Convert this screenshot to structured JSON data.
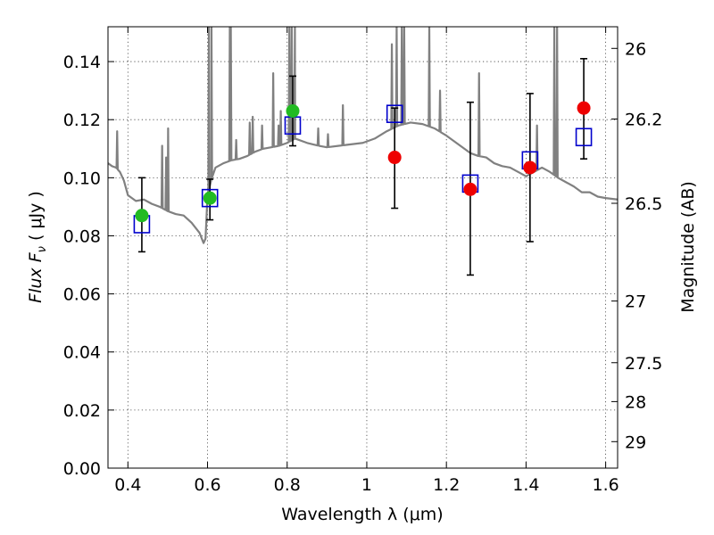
{
  "chart_data": {
    "type": "scatter",
    "xlabel": "Wavelength  λ (μm)",
    "ylabel": "Flux  F",
    "ylabel_sub": "ν",
    "ylabel_unit": "  ( μJy )",
    "y2label": "Magnitude (AB)",
    "xlim": [
      0.35,
      1.63
    ],
    "ylim": [
      0.0,
      0.152
    ],
    "grid": true,
    "x_ticks": [
      0.4,
      0.6,
      0.8,
      1.0,
      1.2,
      1.4,
      1.6
    ],
    "x_tick_labels": [
      "0.4",
      "0.6",
      "0.8",
      "1",
      "1.2",
      "1.4",
      "1.6"
    ],
    "y_ticks": [
      0.0,
      0.02,
      0.04,
      0.06,
      0.08,
      0.1,
      0.12,
      0.14
    ],
    "y_tick_labels": [
      "0.00",
      "0.02",
      "0.04",
      "0.06",
      "0.08",
      "0.10",
      "0.12",
      "0.14"
    ],
    "magnitude_ticks": [
      {
        "label": "26",
        "mag": 26.0
      },
      {
        "label": "26.2",
        "mag": 26.2
      },
      {
        "label": "26.5",
        "mag": 26.5
      },
      {
        "label": "27",
        "mag": 27.0
      },
      {
        "label": "27.5",
        "mag": 27.5
      },
      {
        "label": "28",
        "mag": 28.0
      },
      {
        "label": "29",
        "mag": 29.0
      }
    ],
    "colors": {
      "spectrum": "#808080",
      "model": "#0000cc",
      "observed_green": "#22bb22",
      "observed_red": "#ee0000",
      "errorbar": "#000000"
    },
    "model_photometry": {
      "x": [
        0.435,
        0.606,
        0.814,
        1.07,
        1.26,
        1.41,
        1.545
      ],
      "y": [
        0.084,
        0.093,
        0.118,
        0.122,
        0.098,
        0.106,
        0.114
      ]
    },
    "observed": [
      {
        "x": 0.435,
        "y": 0.087,
        "err_low": 0.0745,
        "err_high": 0.1,
        "color": "green"
      },
      {
        "x": 0.606,
        "y": 0.093,
        "err_low": 0.0855,
        "err_high": 0.0995,
        "color": "green"
      },
      {
        "x": 0.814,
        "y": 0.123,
        "err_low": 0.111,
        "err_high": 0.135,
        "color": "green"
      },
      {
        "x": 1.07,
        "y": 0.107,
        "err_low": 0.0895,
        "err_high": 0.124,
        "color": "red"
      },
      {
        "x": 1.26,
        "y": 0.096,
        "err_low": 0.0665,
        "err_high": 0.126,
        "color": "red"
      },
      {
        "x": 1.41,
        "y": 0.1035,
        "err_low": 0.078,
        "err_high": 0.129,
        "color": "red"
      },
      {
        "x": 1.545,
        "y": 0.124,
        "err_low": 0.1065,
        "err_high": 0.141,
        "color": "red"
      }
    ],
    "spectrum": {
      "x": [
        0.35,
        0.36,
        0.37,
        0.38,
        0.39,
        0.4,
        0.42,
        0.44,
        0.46,
        0.48,
        0.5,
        0.52,
        0.54,
        0.56,
        0.58,
        0.59,
        0.595,
        0.6,
        0.61,
        0.62,
        0.64,
        0.66,
        0.68,
        0.7,
        0.72,
        0.74,
        0.76,
        0.78,
        0.8,
        0.82,
        0.85,
        0.88,
        0.9,
        0.93,
        0.96,
        0.99,
        1.02,
        1.05,
        1.08,
        1.11,
        1.14,
        1.17,
        1.2,
        1.22,
        1.24,
        1.26,
        1.28,
        1.3,
        1.32,
        1.34,
        1.36,
        1.38,
        1.4,
        1.42,
        1.44,
        1.46,
        1.48,
        1.5,
        1.52,
        1.54,
        1.56,
        1.58,
        1.6,
        1.63
      ],
      "y": [
        0.105,
        0.104,
        0.1035,
        0.102,
        0.099,
        0.094,
        0.092,
        0.0925,
        0.091,
        0.09,
        0.0885,
        0.0875,
        0.087,
        0.0845,
        0.081,
        0.0775,
        0.079,
        0.094,
        0.0995,
        0.1035,
        0.105,
        0.106,
        0.1065,
        0.1075,
        0.109,
        0.11,
        0.1105,
        0.111,
        0.112,
        0.1135,
        0.112,
        0.111,
        0.1105,
        0.111,
        0.1115,
        0.112,
        0.1135,
        0.116,
        0.118,
        0.119,
        0.1185,
        0.117,
        0.1145,
        0.1125,
        0.1105,
        0.1085,
        0.1075,
        0.107,
        0.105,
        0.104,
        0.1035,
        0.102,
        0.1005,
        0.102,
        0.1035,
        0.102,
        0.1,
        0.0985,
        0.097,
        0.095,
        0.095,
        0.0935,
        0.093,
        0.0925
      ]
    },
    "emission_lines": [
      {
        "x": 0.373,
        "y": 0.116
      },
      {
        "x": 0.486,
        "y": 0.111
      },
      {
        "x": 0.496,
        "y": 0.107
      },
      {
        "x": 0.501,
        "y": 0.117
      },
      {
        "x": 0.6035,
        "y": 0.152
      },
      {
        "x": 0.61,
        "y": 0.152
      },
      {
        "x": 0.656,
        "y": 0.152
      },
      {
        "x": 0.6585,
        "y": 0.152
      },
      {
        "x": 0.672,
        "y": 0.113
      },
      {
        "x": 0.706,
        "y": 0.119
      },
      {
        "x": 0.7135,
        "y": 0.121
      },
      {
        "x": 0.737,
        "y": 0.118
      },
      {
        "x": 0.765,
        "y": 0.136
      },
      {
        "x": 0.7785,
        "y": 0.118
      },
      {
        "x": 0.784,
        "y": 0.123
      },
      {
        "x": 0.8055,
        "y": 0.152
      },
      {
        "x": 0.8115,
        "y": 0.152
      },
      {
        "x": 0.8195,
        "y": 0.152
      },
      {
        "x": 0.878,
        "y": 0.117
      },
      {
        "x": 0.9025,
        "y": 0.115
      },
      {
        "x": 0.94,
        "y": 0.125
      },
      {
        "x": 1.063,
        "y": 0.146
      },
      {
        "x": 1.075,
        "y": 0.152
      },
      {
        "x": 1.088,
        "y": 0.152
      },
      {
        "x": 1.094,
        "y": 0.152
      },
      {
        "x": 1.157,
        "y": 0.152
      },
      {
        "x": 1.184,
        "y": 0.13
      },
      {
        "x": 1.282,
        "y": 0.136
      },
      {
        "x": 1.4275,
        "y": 0.118
      },
      {
        "x": 1.471,
        "y": 0.152
      },
      {
        "x": 1.478,
        "y": 0.152
      }
    ]
  }
}
